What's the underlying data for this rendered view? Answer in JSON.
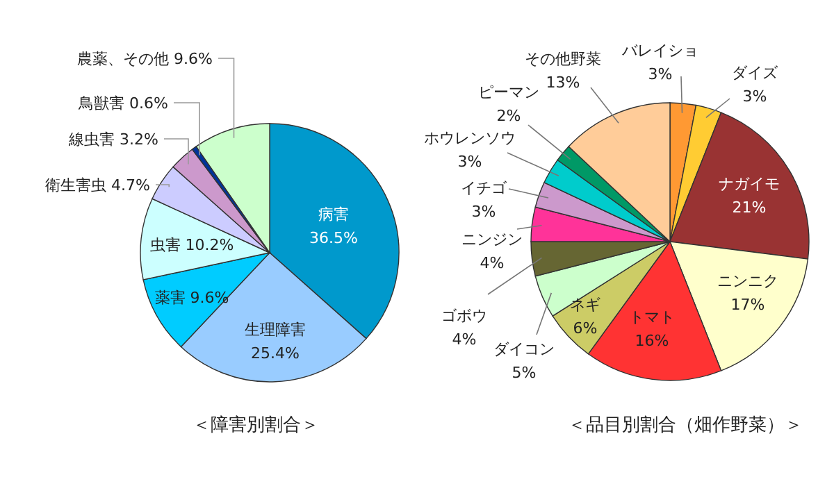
{
  "chart_data": [
    {
      "type": "pie",
      "title": "＜障害別割合＞",
      "categories": [
        "病害",
        "生理障害",
        "薬害",
        "虫害",
        "衛生害虫",
        "線虫害",
        "鳥獣害",
        "農薬、その他"
      ],
      "values": [
        36.5,
        25.4,
        9.6,
        10.2,
        4.7,
        3.2,
        0.6,
        9.6
      ],
      "colors": [
        "#0099cc",
        "#99ccff",
        "#00ccff",
        "#ccffff",
        "#ccccff",
        "#cc99cc",
        "#003399",
        "#ccffcc"
      ],
      "value_labels": [
        "36.5%",
        "25.4%",
        "9.6%",
        "10.2%",
        "4.7%",
        "3.2%",
        "0.6%",
        "9.6%"
      ]
    },
    {
      "type": "pie",
      "title": "＜品目別割合（畑作野菜）＞",
      "categories": [
        "バレイショ",
        "ダイズ",
        "ナガイモ",
        "ニンニク",
        "トマト",
        "ネギ",
        "ダイコン",
        "ゴボウ",
        "ニンジン",
        "イチゴ",
        "ホウレンソウ",
        "ピーマン",
        "その他野菜"
      ],
      "values": [
        3,
        3,
        21,
        17,
        16,
        6,
        5,
        4,
        4,
        3,
        3,
        2,
        13
      ],
      "colors": [
        "#ff9933",
        "#ffcc33",
        "#993333",
        "#ffffcc",
        "#ff3333",
        "#cccc66",
        "#ccffcc",
        "#666633",
        "#ff3399",
        "#cc99cc",
        "#00cccc",
        "#009966",
        "#ffcc99"
      ],
      "value_labels": [
        "3%",
        "3%",
        "21%",
        "17%",
        "16%",
        "6%",
        "5%",
        "4%",
        "4%",
        "3%",
        "3%",
        "2%",
        "13%"
      ]
    }
  ]
}
